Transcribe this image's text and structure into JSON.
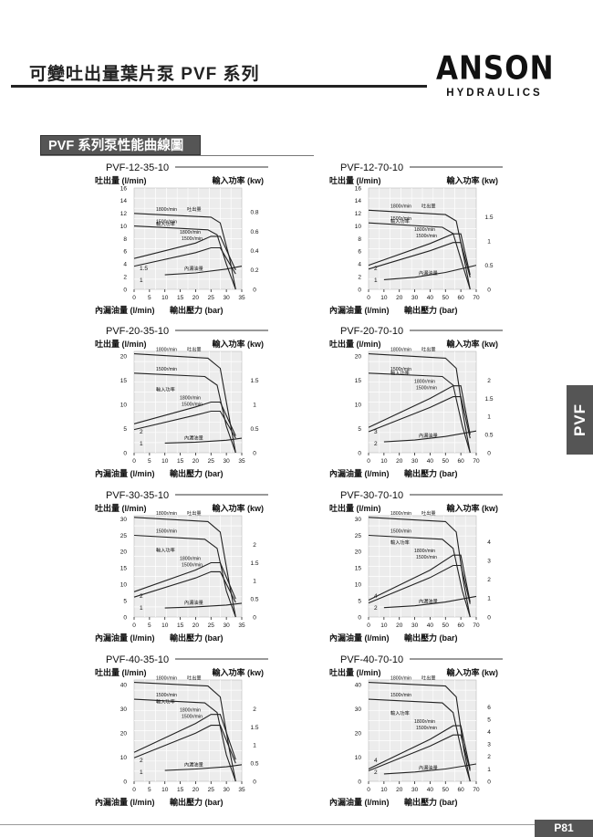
{
  "page": {
    "title": "可變吐出量葉片泵 PVF 系列",
    "brand_name": "ANSON",
    "brand_sub": "HYDRAULICS",
    "section_title": "PVF 系列泵性能曲線圖",
    "side_tab": "PVF",
    "page_number": "P81",
    "colors": {
      "section_bg": "#555555",
      "plot_bg": "#ececec",
      "grid": "#ffffff",
      "curve": "#222222"
    }
  },
  "chart_labels": {
    "flow_axis": "吐出量 (l/min)",
    "power_axis": "輸入功率 (kw)",
    "leak_axis": "內漏油量 (l/min)",
    "pressure_axis": "輸出壓力 (bar)",
    "curve_flow": "吐出量",
    "curve_power": "輸入功率",
    "curve_leak": "內漏油量",
    "rpm_1800": "1800r/min",
    "rpm_1500": "1500r/min"
  },
  "chart_data": [
    {
      "type": "line",
      "title": "PVF-12-35-10",
      "x_ticks": [
        0,
        5,
        10,
        15,
        20,
        25,
        30,
        35
      ],
      "xlim": [
        0,
        35
      ],
      "y_ticks": [
        0,
        2,
        4,
        6,
        8,
        10,
        12,
        14,
        16
      ],
      "ylim": [
        0,
        16
      ],
      "power_ticks": [
        0,
        0.2,
        0.4,
        0.6,
        0.8
      ],
      "power_lim": [
        0,
        1.05
      ],
      "leak_ticks": [
        1,
        1.5
      ],
      "series": [
        {
          "name": "1800r/min 吐出量",
          "axis": "flow",
          "x": [
            0,
            25,
            28,
            31,
            33
          ],
          "y": [
            12,
            11.4,
            10.5,
            5,
            0
          ]
        },
        {
          "name": "1500r/min",
          "axis": "flow",
          "x": [
            0,
            24,
            27,
            30,
            33
          ],
          "y": [
            10,
            9.4,
            8.6,
            4,
            0
          ]
        },
        {
          "name": "輸入功率 1800r/min",
          "axis": "power",
          "x": [
            0,
            20,
            25,
            28,
            33
          ],
          "y": [
            0.32,
            0.48,
            0.55,
            0.55,
            0.2
          ]
        },
        {
          "name": "輸入功率 1500r/min",
          "axis": "power",
          "x": [
            0,
            20,
            25,
            28,
            33
          ],
          "y": [
            0.24,
            0.38,
            0.43,
            0.43,
            0.16
          ]
        },
        {
          "name": "內漏油量",
          "axis": "power",
          "x": [
            10,
            20,
            30,
            35
          ],
          "y": [
            0.15,
            0.17,
            0.21,
            0.24
          ]
        }
      ]
    },
    {
      "type": "line",
      "title": "PVF-12-70-10",
      "x_ticks": [
        0,
        10,
        20,
        30,
        40,
        50,
        60,
        70
      ],
      "xlim": [
        0,
        70
      ],
      "y_ticks": [
        0,
        2,
        4,
        6,
        8,
        10,
        12,
        14,
        16
      ],
      "ylim": [
        0,
        16
      ],
      "power_ticks": [
        0,
        0.5,
        1,
        1.5
      ],
      "power_lim": [
        0,
        2.1
      ],
      "leak_ticks": [
        1,
        2
      ],
      "series": [
        {
          "name": "1800r/min 吐出量",
          "axis": "flow",
          "x": [
            0,
            50,
            57,
            62,
            66
          ],
          "y": [
            12.5,
            11.8,
            10.8,
            5,
            0
          ]
        },
        {
          "name": "1500r/min",
          "axis": "flow",
          "x": [
            0,
            48,
            55,
            61,
            66
          ],
          "y": [
            10.5,
            9.8,
            8.8,
            4,
            0
          ]
        },
        {
          "name": "輸入功率 1800r/min",
          "axis": "power",
          "x": [
            0,
            40,
            55,
            60,
            66
          ],
          "y": [
            0.5,
            0.95,
            1.15,
            1.15,
            0.3
          ]
        },
        {
          "name": "輸入功率 1500r/min",
          "axis": "power",
          "x": [
            0,
            40,
            55,
            60,
            66
          ],
          "y": [
            0.42,
            0.8,
            0.97,
            0.97,
            0.25
          ]
        },
        {
          "name": "內漏油量",
          "axis": "power",
          "x": [
            10,
            30,
            50,
            70
          ],
          "y": [
            0.2,
            0.25,
            0.35,
            0.5
          ]
        }
      ]
    },
    {
      "type": "line",
      "title": "PVF-20-35-10",
      "x_ticks": [
        0,
        5,
        10,
        15,
        20,
        25,
        30,
        35
      ],
      "xlim": [
        0,
        35
      ],
      "y_ticks": [
        0,
        5,
        10,
        15,
        20
      ],
      "ylim": [
        0,
        21
      ],
      "power_ticks": [
        0,
        0.5,
        1,
        1.5
      ],
      "power_lim": [
        0,
        2.1
      ],
      "leak_ticks": [
        1,
        2
      ],
      "series": [
        {
          "name": "1800r/min 吐出量",
          "axis": "flow",
          "x": [
            0,
            24,
            28,
            31,
            33
          ],
          "y": [
            20.5,
            19.6,
            17.5,
            7,
            0
          ]
        },
        {
          "name": "1500r/min",
          "axis": "flow",
          "x": [
            0,
            23,
            27,
            30,
            33
          ],
          "y": [
            16.5,
            15.8,
            14,
            5.5,
            0
          ]
        },
        {
          "name": "輸入功率 1800r/min",
          "axis": "power",
          "x": [
            0,
            20,
            25,
            28,
            33
          ],
          "y": [
            0.6,
            0.95,
            1.05,
            1.05,
            0.35
          ]
        },
        {
          "name": "輸入功率 1500r/min",
          "axis": "power",
          "x": [
            0,
            20,
            25,
            28,
            33
          ],
          "y": [
            0.48,
            0.78,
            0.86,
            0.86,
            0.3
          ]
        },
        {
          "name": "內漏油量",
          "axis": "power",
          "x": [
            10,
            20,
            30,
            35
          ],
          "y": [
            0.2,
            0.22,
            0.26,
            0.3
          ]
        }
      ]
    },
    {
      "type": "line",
      "title": "PVF-20-70-10",
      "x_ticks": [
        0,
        10,
        20,
        30,
        40,
        50,
        60,
        70
      ],
      "xlim": [
        0,
        70
      ],
      "y_ticks": [
        0,
        5,
        10,
        15,
        20
      ],
      "ylim": [
        0,
        21
      ],
      "power_ticks": [
        0,
        0.5,
        1,
        1.5,
        2
      ],
      "power_lim": [
        0,
        2.8
      ],
      "leak_ticks": [
        2,
        3
      ],
      "series": [
        {
          "name": "1800r/min 吐出量",
          "axis": "flow",
          "x": [
            0,
            50,
            57,
            62,
            66
          ],
          "y": [
            20.5,
            19.6,
            17.5,
            7,
            0
          ]
        },
        {
          "name": "1500r/min",
          "axis": "flow",
          "x": [
            0,
            48,
            55,
            61,
            66
          ],
          "y": [
            16.5,
            15.8,
            14,
            5.5,
            0
          ]
        },
        {
          "name": "輸入功率 1800r/min",
          "axis": "power",
          "x": [
            0,
            40,
            55,
            60,
            66
          ],
          "y": [
            0.7,
            1.5,
            1.85,
            1.85,
            0.5
          ]
        },
        {
          "name": "輸入功率 1500r/min",
          "axis": "power",
          "x": [
            0,
            40,
            55,
            60,
            66
          ],
          "y": [
            0.58,
            1.25,
            1.55,
            1.55,
            0.4
          ]
        },
        {
          "name": "內漏油量",
          "axis": "power",
          "x": [
            10,
            30,
            50,
            70
          ],
          "y": [
            0.3,
            0.35,
            0.45,
            0.6
          ]
        }
      ]
    },
    {
      "type": "line",
      "title": "PVF-30-35-10",
      "x_ticks": [
        0,
        5,
        10,
        15,
        20,
        25,
        30,
        35
      ],
      "xlim": [
        0,
        35
      ],
      "y_ticks": [
        0,
        5,
        10,
        15,
        20,
        25,
        30
      ],
      "ylim": [
        0,
        31
      ],
      "power_ticks": [
        0,
        0.5,
        1,
        1.5,
        2
      ],
      "power_lim": [
        0,
        2.8
      ],
      "leak_ticks": [
        1,
        2
      ],
      "series": [
        {
          "name": "1800r/min 吐出量",
          "axis": "flow",
          "x": [
            0,
            24,
            28,
            31,
            33
          ],
          "y": [
            30.5,
            29.2,
            26,
            10,
            0
          ]
        },
        {
          "name": "1500r/min",
          "axis": "flow",
          "x": [
            0,
            23,
            27,
            30,
            33
          ],
          "y": [
            25,
            23.8,
            21,
            8,
            0
          ]
        },
        {
          "name": "輸入功率 1800r/min",
          "axis": "power",
          "x": [
            0,
            20,
            25,
            28,
            33
          ],
          "y": [
            0.7,
            1.3,
            1.5,
            1.5,
            0.5
          ]
        },
        {
          "name": "輸入功率 1500r/min",
          "axis": "power",
          "x": [
            0,
            20,
            25,
            28,
            33
          ],
          "y": [
            0.55,
            1.08,
            1.25,
            1.25,
            0.4
          ]
        },
        {
          "name": "內漏油量",
          "axis": "power",
          "x": [
            10,
            20,
            30,
            35
          ],
          "y": [
            0.25,
            0.28,
            0.33,
            0.38
          ]
        }
      ]
    },
    {
      "type": "line",
      "title": "PVF-30-70-10",
      "x_ticks": [
        0,
        10,
        20,
        30,
        40,
        50,
        60,
        70
      ],
      "xlim": [
        0,
        70
      ],
      "y_ticks": [
        0,
        5,
        10,
        15,
        20,
        25,
        30
      ],
      "ylim": [
        0,
        31
      ],
      "power_ticks": [
        0,
        1,
        2,
        3,
        4
      ],
      "power_lim": [
        0,
        5.4
      ],
      "leak_ticks": [
        2,
        4
      ],
      "series": [
        {
          "name": "1800r/min 吐出量",
          "axis": "flow",
          "x": [
            0,
            50,
            57,
            62,
            66
          ],
          "y": [
            30.5,
            29.2,
            26,
            10,
            0
          ]
        },
        {
          "name": "1500r/min",
          "axis": "flow",
          "x": [
            0,
            48,
            55,
            61,
            66
          ],
          "y": [
            25,
            23.8,
            21,
            8,
            0
          ]
        },
        {
          "name": "輸入功率 1800r/min",
          "axis": "power",
          "x": [
            0,
            40,
            55,
            60,
            66
          ],
          "y": [
            0.9,
            2.5,
            3.3,
            3.3,
            0.8
          ]
        },
        {
          "name": "輸入功率 1500r/min",
          "axis": "power",
          "x": [
            0,
            40,
            55,
            60,
            66
          ],
          "y": [
            0.75,
            2.1,
            2.75,
            2.75,
            0.7
          ]
        },
        {
          "name": "內漏油量",
          "axis": "power",
          "x": [
            10,
            30,
            50,
            70
          ],
          "y": [
            0.5,
            0.6,
            0.8,
            1.1
          ]
        }
      ]
    },
    {
      "type": "line",
      "title": "PVF-40-35-10",
      "x_ticks": [
        0,
        5,
        10,
        15,
        20,
        25,
        30,
        35
      ],
      "xlim": [
        0,
        35
      ],
      "y_ticks": [
        0,
        10,
        20,
        30,
        40
      ],
      "ylim": [
        0,
        42
      ],
      "power_ticks": [
        0,
        0.5,
        1,
        1.5,
        2
      ],
      "power_lim": [
        0,
        2.8
      ],
      "leak_ticks": [
        1,
        2
      ],
      "series": [
        {
          "name": "1800r/min 吐出量",
          "axis": "flow",
          "x": [
            0,
            24,
            28,
            31,
            33
          ],
          "y": [
            41,
            39.5,
            35,
            13,
            0
          ]
        },
        {
          "name": "1500r/min",
          "axis": "flow",
          "x": [
            0,
            23,
            27,
            30,
            33
          ],
          "y": [
            34,
            32.5,
            28.5,
            11,
            0
          ]
        },
        {
          "name": "輸入功率 1800r/min",
          "axis": "power",
          "x": [
            0,
            20,
            25,
            28,
            33
          ],
          "y": [
            0.8,
            1.6,
            1.85,
            1.85,
            0.6
          ]
        },
        {
          "name": "輸入功率 1500r/min",
          "axis": "power",
          "x": [
            0,
            20,
            25,
            28,
            33
          ],
          "y": [
            0.65,
            1.33,
            1.55,
            1.55,
            0.5
          ]
        },
        {
          "name": "內漏油量",
          "axis": "power",
          "x": [
            10,
            20,
            30,
            35
          ],
          "y": [
            0.3,
            0.34,
            0.4,
            0.46
          ]
        }
      ]
    },
    {
      "type": "line",
      "title": "PVF-40-70-10",
      "x_ticks": [
        0,
        10,
        20,
        30,
        40,
        50,
        60,
        70
      ],
      "xlim": [
        0,
        70
      ],
      "y_ticks": [
        0,
        10,
        20,
        30,
        40
      ],
      "ylim": [
        0,
        42
      ],
      "power_ticks": [
        0,
        1,
        2,
        3,
        4,
        5,
        6
      ],
      "power_lim": [
        0,
        8.2
      ],
      "leak_ticks": [
        2,
        4
      ],
      "series": [
        {
          "name": "1800r/min 吐出量",
          "axis": "flow",
          "x": [
            0,
            50,
            57,
            62,
            66
          ],
          "y": [
            41,
            39.5,
            35,
            13,
            0
          ]
        },
        {
          "name": "1500r/min",
          "axis": "flow",
          "x": [
            0,
            48,
            55,
            61,
            66
          ],
          "y": [
            34,
            32.5,
            28.5,
            11,
            0
          ]
        },
        {
          "name": "輸入功率 1800r/min",
          "axis": "power",
          "x": [
            0,
            40,
            55,
            60,
            66
          ],
          "y": [
            1,
            3.4,
            4.5,
            4.5,
            1
          ]
        },
        {
          "name": "輸入功率 1500r/min",
          "axis": "power",
          "x": [
            0,
            40,
            55,
            60,
            66
          ],
          "y": [
            0.85,
            2.85,
            3.75,
            3.75,
            0.85
          ]
        },
        {
          "name": "內漏油量",
          "axis": "power",
          "x": [
            10,
            30,
            50,
            70
          ],
          "y": [
            0.6,
            0.75,
            1,
            1.4
          ]
        }
      ]
    }
  ]
}
